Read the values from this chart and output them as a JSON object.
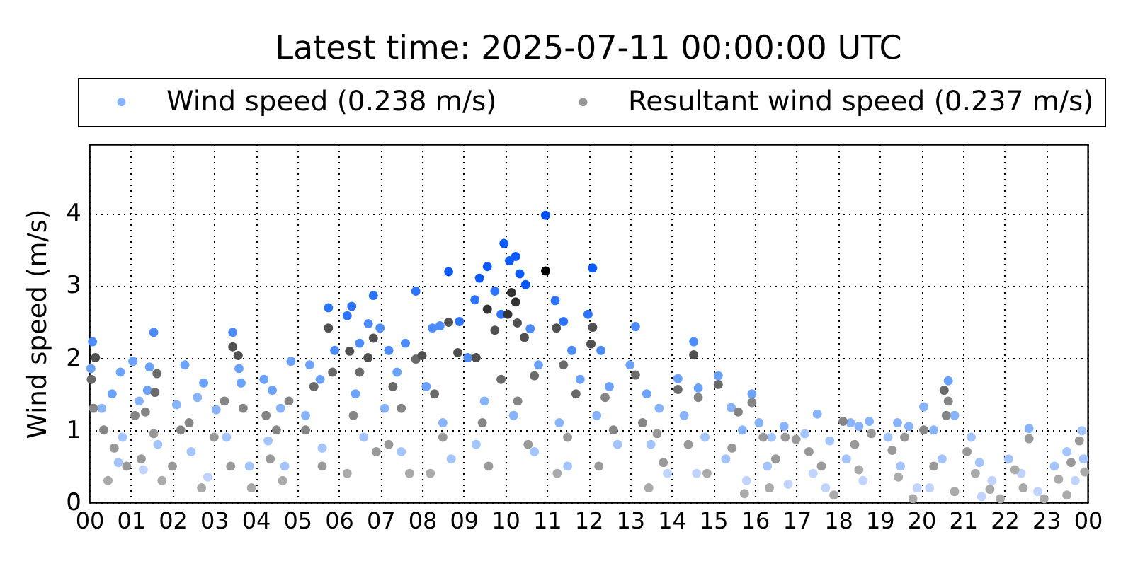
{
  "chart_data": {
    "type": "scatter",
    "title": "Latest time: 2025-07-11 00:00:00 UTC",
    "ylabel": "Wind speed (m/s)",
    "xlim": [
      0,
      24
    ],
    "ylim": [
      0,
      4.95
    ],
    "xticks": [
      {
        "value": 0,
        "label": "00"
      },
      {
        "value": 1,
        "label": "01"
      },
      {
        "value": 2,
        "label": "02"
      },
      {
        "value": 3,
        "label": "03"
      },
      {
        "value": 4,
        "label": "04"
      },
      {
        "value": 5,
        "label": "05"
      },
      {
        "value": 6,
        "label": "06"
      },
      {
        "value": 7,
        "label": "07"
      },
      {
        "value": 8,
        "label": "08"
      },
      {
        "value": 9,
        "label": "09"
      },
      {
        "value": 10,
        "label": "10"
      },
      {
        "value": 11,
        "label": "11"
      },
      {
        "value": 12,
        "label": "12"
      },
      {
        "value": 13,
        "label": "13"
      },
      {
        "value": 14,
        "label": "14"
      },
      {
        "value": 15,
        "label": "15"
      },
      {
        "value": 16,
        "label": "16"
      },
      {
        "value": 17,
        "label": "17"
      },
      {
        "value": 18,
        "label": "18"
      },
      {
        "value": 19,
        "label": "19"
      },
      {
        "value": 20,
        "label": "20"
      },
      {
        "value": 21,
        "label": "21"
      },
      {
        "value": 22,
        "label": "22"
      },
      {
        "value": 23,
        "label": "23"
      },
      {
        "value": 24,
        "label": "00"
      }
    ],
    "yticks": [
      0,
      1,
      2,
      3,
      4
    ],
    "grid": true,
    "legend": "top",
    "marker": "circle",
    "series": [
      {
        "name": "Wind speed (0.238 m/s)",
        "color": "#88b4ff",
        "x": [
          0.08,
          0.04,
          0.3,
          0.55,
          0.8,
          0.7,
          1.05,
          0.75,
          1.2,
          1.4,
          1.65,
          1.3,
          1.55,
          1.45,
          2.3,
          2.1,
          2.6,
          2.45,
          2.85,
          3.45,
          2.75,
          3.05,
          3.6,
          3.65,
          3.3,
          3.85,
          4.2,
          4.4,
          4.6,
          4.85,
          4.3,
          4.7,
          5.3,
          5.55,
          5.75,
          5.9,
          5.2,
          5.6,
          6.2,
          6.31,
          6.5,
          6.71,
          6.83,
          6.99,
          6.4,
          6.6,
          7.2,
          7.4,
          7.6,
          7.85,
          7.1,
          7.5,
          8.25,
          8.43,
          8.64,
          8.9,
          8.1,
          8.5,
          8.7,
          9.27,
          9.38,
          9.57,
          9.75,
          9.9,
          9.1,
          9.5,
          9.3,
          9.97,
          10.1,
          10.25,
          10.35,
          10.49,
          10.6,
          10.8,
          10.2,
          10.7,
          10.97,
          11.2,
          11.4,
          11.6,
          11.8,
          11.3,
          11.5,
          11.99,
          12.1,
          12.3,
          12.5,
          12.2,
          12.7,
          13.13,
          13.0,
          13.4,
          13.7,
          13.5,
          13.9,
          14.15,
          14.53,
          14.64,
          14.3,
          14.8,
          14.6,
          15.12,
          15.43,
          15.93,
          15.7,
          15.3,
          15.8,
          16.1,
          16.4,
          16.7,
          16.3,
          16.8,
          17.2,
          17.5,
          17.8,
          17.4,
          17.7,
          18.3,
          18.5,
          18.75,
          18.2,
          18.6,
          19.43,
          19.2,
          19.7,
          19.5,
          19.9,
          20.06,
          20.3,
          20.65,
          20.8,
          20.5,
          20.2,
          21.2,
          21.4,
          21.7,
          21.45,
          22.1,
          22.59,
          22.4,
          22.8,
          23.2,
          23.5,
          23.86,
          23.7,
          23.9
        ],
        "values": [
          2.22,
          1.85,
          1.3,
          1.5,
          0.9,
          0.55,
          1.95,
          1.8,
          1.4,
          1.55,
          0.8,
          0.45,
          2.35,
          1.87,
          1.9,
          1.35,
          1.45,
          0.7,
          0.35,
          2.35,
          1.65,
          1.28,
          1.85,
          1.65,
          0.9,
          0.5,
          1.7,
          1.55,
          1.3,
          1.95,
          0.85,
          0.5,
          1.9,
          1.7,
          2.69,
          2.1,
          1.2,
          0.75,
          2.58,
          2.71,
          2.2,
          2.47,
          2.86,
          2.41,
          1.5,
          0.9,
          2.1,
          1.8,
          2.2,
          2.92,
          1.3,
          0.7,
          2.41,
          2.44,
          3.19,
          2.5,
          1.6,
          1.1,
          0.6,
          2.8,
          3.1,
          3.26,
          2.92,
          2.6,
          2.0,
          1.4,
          0.8,
          3.58,
          3.34,
          3.4,
          3.16,
          3.01,
          2.4,
          1.9,
          1.2,
          0.7,
          3.97,
          2.79,
          2.5,
          2.1,
          1.7,
          1.1,
          0.5,
          2.6,
          3.24,
          2.1,
          1.6,
          1.2,
          0.8,
          2.43,
          1.9,
          1.5,
          1.3,
          0.8,
          0.4,
          1.71,
          2.22,
          1.58,
          1.2,
          0.9,
          0.4,
          1.75,
          1.31,
          1.5,
          1.0,
          0.6,
          0.3,
          1.1,
          0.9,
          1.05,
          0.5,
          0.25,
          0.95,
          1.22,
          0.85,
          0.4,
          0.2,
          1.1,
          1.05,
          1.12,
          0.6,
          0.3,
          1.1,
          0.9,
          1.05,
          0.5,
          0.2,
          1.32,
          1.0,
          1.68,
          1.2,
          0.6,
          0.2,
          0.9,
          0.55,
          0.3,
          0.08,
          0.6,
          1.02,
          0.4,
          0.15,
          0.5,
          0.7,
          0.99,
          0.3,
          0.6
        ],
        "colors": [
          "#4c8cff",
          "#6ca2ff",
          "#88b4ff",
          "#6ca2ff",
          "#a4c4ff",
          "#a4c4ff",
          "#6ca2ff",
          "#6ca2ff",
          "#88b4ff",
          "#6ca2ff",
          "#a4c4ff",
          "#c0d4ff",
          "#4c8cff",
          "#6ca2ff",
          "#6ca2ff",
          "#88b4ff",
          "#88b4ff",
          "#a4c4ff",
          "#c0d4ff",
          "#4c8cff",
          "#6ca2ff",
          "#88b4ff",
          "#6ca2ff",
          "#6ca2ff",
          "#a4c4ff",
          "#a4c4ff",
          "#6ca2ff",
          "#6ca2ff",
          "#88b4ff",
          "#6ca2ff",
          "#a4c4ff",
          "#a4c4ff",
          "#6ca2ff",
          "#6ca2ff",
          "#2c74ff",
          "#4c8cff",
          "#88b4ff",
          "#a4c4ff",
          "#2c74ff",
          "#2c74ff",
          "#4c8cff",
          "#4c8cff",
          "#2c74ff",
          "#4c8cff",
          "#6ca2ff",
          "#a4c4ff",
          "#4c8cff",
          "#6ca2ff",
          "#4c8cff",
          "#2c74ff",
          "#88b4ff",
          "#a4c4ff",
          "#4c8cff",
          "#4c8cff",
          "#0a5aff",
          "#2c74ff",
          "#6ca2ff",
          "#88b4ff",
          "#a4c4ff",
          "#2c74ff",
          "#0a5aff",
          "#0a5aff",
          "#2c74ff",
          "#2c74ff",
          "#4c8cff",
          "#88b4ff",
          "#a4c4ff",
          "#0a5aff",
          "#0a5aff",
          "#0a5aff",
          "#0a5aff",
          "#0a5aff",
          "#4c8cff",
          "#6ca2ff",
          "#88b4ff",
          "#a4c4ff",
          "#0050ff",
          "#2c74ff",
          "#2c74ff",
          "#4c8cff",
          "#6ca2ff",
          "#88b4ff",
          "#a4c4ff",
          "#2c74ff",
          "#0a5aff",
          "#4c8cff",
          "#6ca2ff",
          "#88b4ff",
          "#a4c4ff",
          "#4c8cff",
          "#6ca2ff",
          "#6ca2ff",
          "#88b4ff",
          "#a4c4ff",
          "#c0d4ff",
          "#6ca2ff",
          "#4c8cff",
          "#6ca2ff",
          "#88b4ff",
          "#a4c4ff",
          "#c0d4ff",
          "#6ca2ff",
          "#88b4ff",
          "#6ca2ff",
          "#88b4ff",
          "#a4c4ff",
          "#c0d4ff",
          "#88b4ff",
          "#a4c4ff",
          "#88b4ff",
          "#a4c4ff",
          "#c0d4ff",
          "#a4c4ff",
          "#88b4ff",
          "#a4c4ff",
          "#c0d4ff",
          "#c0d4ff",
          "#88b4ff",
          "#88b4ff",
          "#88b4ff",
          "#a4c4ff",
          "#c0d4ff",
          "#88b4ff",
          "#a4c4ff",
          "#88b4ff",
          "#a4c4ff",
          "#c0d4ff",
          "#88b4ff",
          "#88b4ff",
          "#6ca2ff",
          "#88b4ff",
          "#a4c4ff",
          "#c0d4ff",
          "#a4c4ff",
          "#a4c4ff",
          "#c0d4ff",
          "#c0d4ff",
          "#a4c4ff",
          "#88b4ff",
          "#c0d4ff",
          "#c0d4ff",
          "#a4c4ff",
          "#a4c4ff",
          "#a4c4ff",
          "#c0d4ff",
          "#a4c4ff"
        ]
      },
      {
        "name": "Resultant wind speed (0.237 m/s)",
        "color": "#999999",
        "x": [
          0.15,
          0.05,
          0.1,
          0.35,
          0.6,
          0.9,
          0.45,
          1.1,
          1.35,
          1.55,
          1.25,
          1.75,
          1.63,
          1.58,
          2.2,
          2.4,
          2.0,
          2.7,
          3.45,
          3.58,
          3.25,
          3.0,
          3.7,
          3.4,
          3.9,
          4.25,
          4.5,
          4.8,
          4.35,
          4.65,
          5.75,
          5.4,
          5.85,
          5.2,
          5.6,
          6.26,
          6.5,
          6.83,
          6.7,
          6.35,
          6.9,
          6.2,
          7.3,
          7.85,
          7.5,
          7.2,
          7.7,
          8.0,
          8.64,
          8.86,
          8.3,
          8.5,
          8.2,
          9.57,
          9.75,
          9.3,
          9.9,
          9.45,
          9.6,
          10.06,
          10.15,
          10.25,
          10.29,
          10.46,
          10.7,
          10.3,
          10.55,
          10.97,
          11.23,
          11.4,
          11.7,
          11.5,
          11.25,
          12.1,
          12.06,
          12.4,
          12.6,
          12.25,
          13.13,
          13.3,
          13.65,
          13.8,
          13.45,
          14.15,
          14.53,
          14.64,
          14.4,
          14.85,
          15.12,
          15.6,
          15.93,
          15.45,
          15.75,
          16.2,
          16.73,
          16.5,
          16.35,
          16.99,
          17.3,
          17.6,
          17.9,
          18.12,
          18.4,
          18.8,
          18.5,
          19.3,
          19.6,
          19.45,
          19.8,
          20.06,
          20.55,
          20.65,
          20.6,
          20.3,
          20.8,
          21.1,
          21.3,
          21.65,
          21.9,
          22.25,
          22.59,
          22.45,
          22.95,
          23.3,
          23.6,
          23.8,
          23.5,
          23.93
        ],
        "values": [
          2.0,
          1.7,
          1.3,
          1.0,
          0.75,
          0.5,
          0.3,
          1.2,
          1.25,
          0.95,
          0.6,
          0.3,
          1.78,
          1.52,
          1.0,
          1.1,
          0.5,
          0.2,
          2.15,
          2.03,
          1.4,
          0.9,
          1.3,
          0.5,
          0.2,
          1.2,
          1.0,
          1.4,
          0.6,
          0.3,
          2.41,
          1.6,
          1.8,
          1.0,
          0.5,
          2.09,
          1.8,
          2.27,
          2.0,
          1.2,
          0.7,
          0.4,
          1.6,
          1.98,
          1.3,
          0.8,
          0.4,
          2.03,
          2.49,
          2.07,
          1.5,
          0.9,
          0.4,
          2.67,
          2.38,
          2.0,
          1.7,
          1.1,
          0.5,
          2.6,
          2.9,
          2.77,
          2.48,
          2.28,
          1.75,
          1.4,
          0.8,
          3.2,
          2.41,
          1.9,
          1.5,
          0.9,
          0.4,
          2.42,
          2.19,
          1.45,
          1.0,
          0.5,
          1.76,
          1.1,
          0.95,
          0.55,
          0.2,
          1.56,
          2.04,
          1.45,
          0.8,
          0.4,
          1.63,
          1.25,
          1.38,
          0.75,
          0.12,
          0.9,
          0.9,
          0.6,
          0.2,
          0.87,
          0.7,
          0.5,
          0.1,
          1.12,
          0.8,
          0.95,
          0.45,
          0.72,
          0.9,
          0.35,
          0.05,
          1.0,
          1.55,
          1.4,
          1.2,
          0.5,
          0.15,
          0.7,
          0.4,
          0.18,
          0.05,
          0.45,
          0.88,
          0.2,
          0.05,
          0.32,
          0.55,
          0.85,
          0.1,
          0.42
        ],
        "colors": [
          "#505050",
          "#6a6a6a",
          "#858585",
          "#858585",
          "#999999",
          "#999999",
          "#aaaaaa",
          "#858585",
          "#858585",
          "#999999",
          "#999999",
          "#aaaaaa",
          "#6a6a6a",
          "#6a6a6a",
          "#858585",
          "#858585",
          "#999999",
          "#aaaaaa",
          "#505050",
          "#505050",
          "#858585",
          "#999999",
          "#858585",
          "#999999",
          "#aaaaaa",
          "#858585",
          "#858585",
          "#858585",
          "#999999",
          "#aaaaaa",
          "#505050",
          "#6a6a6a",
          "#6a6a6a",
          "#858585",
          "#999999",
          "#505050",
          "#6a6a6a",
          "#505050",
          "#505050",
          "#858585",
          "#999999",
          "#aaaaaa",
          "#6a6a6a",
          "#6a6a6a",
          "#858585",
          "#999999",
          "#aaaaaa",
          "#505050",
          "#505050",
          "#505050",
          "#6a6a6a",
          "#999999",
          "#aaaaaa",
          "#333333",
          "#505050",
          "#505050",
          "#6a6a6a",
          "#858585",
          "#999999",
          "#333333",
          "#333333",
          "#333333",
          "#505050",
          "#505050",
          "#6a6a6a",
          "#858585",
          "#999999",
          "#000000",
          "#505050",
          "#6a6a6a",
          "#6a6a6a",
          "#999999",
          "#aaaaaa",
          "#505050",
          "#505050",
          "#858585",
          "#858585",
          "#999999",
          "#6a6a6a",
          "#858585",
          "#999999",
          "#999999",
          "#aaaaaa",
          "#6a6a6a",
          "#505050",
          "#858585",
          "#999999",
          "#aaaaaa",
          "#6a6a6a",
          "#858585",
          "#858585",
          "#999999",
          "#aaaaaa",
          "#999999",
          "#999999",
          "#999999",
          "#aaaaaa",
          "#999999",
          "#999999",
          "#999999",
          "#aaaaaa",
          "#858585",
          "#999999",
          "#999999",
          "#aaaaaa",
          "#999999",
          "#999999",
          "#aaaaaa",
          "#aaaaaa",
          "#858585",
          "#6a6a6a",
          "#858585",
          "#858585",
          "#999999",
          "#aaaaaa",
          "#999999",
          "#aaaaaa",
          "#aaaaaa",
          "#aaaaaa",
          "#aaaaaa",
          "#999999",
          "#aaaaaa",
          "#aaaaaa",
          "#aaaaaa",
          "#999999",
          "#999999",
          "#aaaaaa",
          "#aaaaaa"
        ]
      }
    ]
  }
}
